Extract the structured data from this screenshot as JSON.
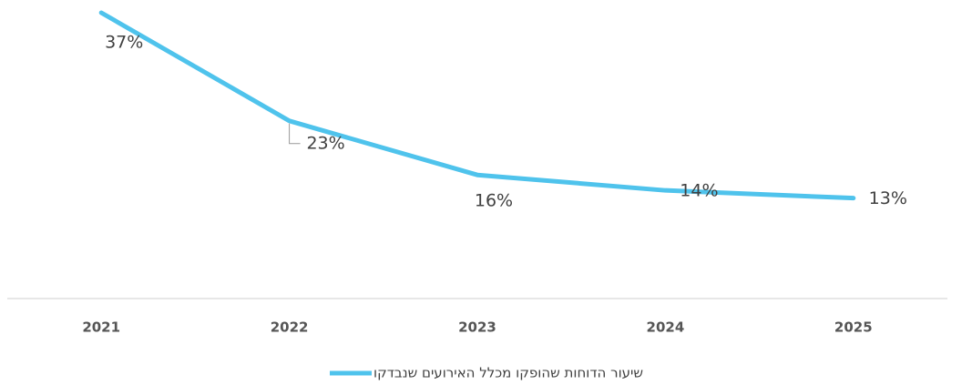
{
  "chart_data": {
    "type": "line",
    "categories": [
      "2021",
      "2022",
      "2023",
      "2024",
      "2025"
    ],
    "series": [
      {
        "name": "שיעור הדוחות שהופקו מכלל האירועים שנבדקו",
        "color": "#4fc3ec",
        "values": [
          37,
          23,
          16,
          14,
          13
        ],
        "value_labels": [
          "37%",
          "23%",
          "16%",
          "14%",
          "13%"
        ]
      }
    ],
    "ylim": [
      0,
      38
    ],
    "legend": "bottom"
  }
}
